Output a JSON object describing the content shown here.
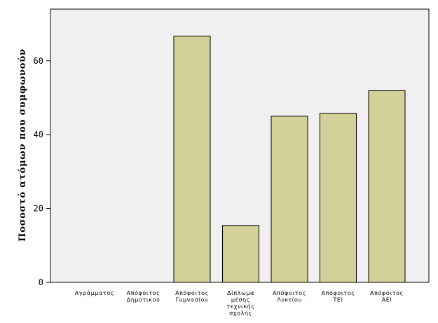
{
  "chart_data": {
    "type": "bar",
    "title": "",
    "xlabel": "",
    "ylabel": "Ποσοστό ατόμων που συμφωνούν",
    "ylim": [
      0,
      74
    ],
    "yticks": [
      0,
      20,
      40,
      60
    ],
    "grid": false,
    "legend": "none",
    "categories": [
      [
        "Αγράμματος"
      ],
      [
        "Απόφοιτος",
        "Δημοτικού"
      ],
      [
        "Απόφοιτος",
        "Γυμνασίου"
      ],
      [
        "Δίπλωμα",
        "μέσης",
        "τεχνικής",
        "σχολής"
      ],
      [
        "Απόφοιτος",
        "Λυκείου"
      ],
      [
        "Απόφοιτος",
        "ΤΕΙ"
      ],
      [
        "Απόφοιτος",
        "ΑΕΙ"
      ]
    ],
    "values": [
      0,
      0,
      66.7,
      15.4,
      45.0,
      45.8,
      51.9
    ],
    "colors": {
      "bar_fill": "#d4d09a",
      "bar_stroke": "#000000",
      "plot_bg": "#f0f0f0"
    }
  }
}
